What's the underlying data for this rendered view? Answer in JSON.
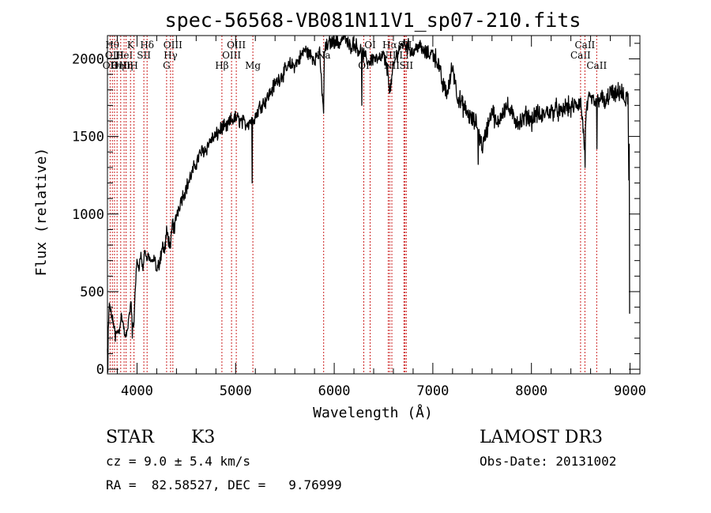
{
  "chart_data": {
    "type": "line",
    "title": "spec-56568-VB081N11V1_sp07-210.fits",
    "xlabel": "Wavelength (Å)",
    "ylabel": "Flux (relative)",
    "xlim": [
      3700,
      9100
    ],
    "ylim": [
      -30,
      2150
    ],
    "x_ticks": [
      4000,
      5000,
      6000,
      7000,
      8000,
      9000
    ],
    "y_ticks": [
      0,
      500,
      1000,
      1500,
      2000
    ],
    "grid": false,
    "series": [
      {
        "color": "#000000",
        "x": [
          3700,
          3720,
          3740,
          3760,
          3780,
          3800,
          3820,
          3840,
          3860,
          3880,
          3900,
          3920,
          3940,
          3960,
          3970,
          3980,
          4000,
          4020,
          4040,
          4060,
          4080,
          4100,
          4120,
          4150,
          4180,
          4200,
          4230,
          4260,
          4280,
          4300,
          4320,
          4340,
          4360,
          4380,
          4400,
          4450,
          4500,
          4550,
          4600,
          4650,
          4700,
          4750,
          4800,
          4860,
          4900,
          4950,
          5000,
          5050,
          5100,
          5150,
          5180,
          5200,
          5250,
          5300,
          5350,
          5400,
          5450,
          5500,
          5550,
          5600,
          5650,
          5700,
          5750,
          5800,
          5850,
          5893,
          5900,
          5950,
          6000,
          6050,
          6100,
          6150,
          6200,
          6250,
          6300,
          6350,
          6400,
          6450,
          6500,
          6550,
          6563,
          6600,
          6650,
          6700,
          6750,
          6800,
          6850,
          6900,
          6950,
          7000,
          7050,
          7100,
          7150,
          7200,
          7250,
          7300,
          7350,
          7400,
          7450,
          7500,
          7550,
          7600,
          7650,
          7700,
          7750,
          7800,
          7850,
          7900,
          7950,
          8000,
          8050,
          8100,
          8150,
          8200,
          8250,
          8300,
          8350,
          8400,
          8450,
          8500,
          8542,
          8560,
          8600,
          8650,
          8700,
          8750,
          8800,
          8850,
          8900,
          8950,
          8980,
          9000
        ],
        "values": [
          130,
          420,
          350,
          300,
          230,
          240,
          250,
          350,
          290,
          200,
          240,
          360,
          420,
          260,
          300,
          500,
          700,
          660,
          740,
          640,
          780,
          700,
          730,
          680,
          720,
          620,
          700,
          800,
          760,
          880,
          840,
          780,
          950,
          900,
          1000,
          1100,
          1170,
          1250,
          1330,
          1400,
          1420,
          1480,
          1500,
          1560,
          1550,
          1600,
          1620,
          1600,
          1580,
          1600,
          1620,
          1630,
          1700,
          1730,
          1780,
          1840,
          1880,
          1920,
          1960,
          1960,
          2000,
          2060,
          2030,
          2000,
          2040,
          1650,
          2060,
          2100,
          2120,
          2100,
          2150,
          2080,
          2100,
          2060,
          2020,
          1980,
          2010,
          1990,
          2020,
          1900,
          1780,
          1950,
          2060,
          2100,
          2080,
          2040,
          2090,
          2050,
          2030,
          2040,
          1980,
          1830,
          1780,
          1960,
          1760,
          1700,
          1650,
          1600,
          1580,
          1430,
          1550,
          1680,
          1560,
          1660,
          1700,
          1640,
          1600,
          1590,
          1640,
          1600,
          1650,
          1620,
          1660,
          1660,
          1680,
          1640,
          1700,
          1680,
          1700,
          1720,
          1420,
          1700,
          1740,
          1720,
          1760,
          1700,
          1790,
          1750,
          1800,
          1720,
          1760,
          360
        ],
        "spikes": [
          [
            3705,
            -20
          ],
          [
            3780,
            180
          ],
          [
            3835,
            320
          ],
          [
            3950,
            200
          ],
          [
            4230,
            720
          ],
          [
            4340,
            780
          ],
          [
            5168,
            1200
          ],
          [
            5893,
            1650
          ],
          [
            6280,
            1700
          ],
          [
            6563,
            1780
          ],
          [
            7460,
            1320
          ],
          [
            8542,
            1300
          ],
          [
            8662,
            1420
          ],
          [
            8992,
            1450
          ]
        ]
      }
    ],
    "lines": [
      {
        "x": 3727,
        "label": "OII",
        "row": 2
      },
      {
        "x": 3750,
        "label": "Hθ",
        "row": 0
      },
      {
        "x": 3771,
        "label": "OIII",
        "row": 1
      },
      {
        "x": 3798,
        "label": "Hη",
        "row": 2
      },
      {
        "x": 3835,
        "label": "OIII",
        "row": 2
      },
      {
        "x": 3869,
        "label": "HeI",
        "row": 1
      },
      {
        "x": 3889,
        "label": "Hη",
        "row": 2
      },
      {
        "x": 3934,
        "label": "K",
        "row": 0
      },
      {
        "x": 3969,
        "label": "H",
        "row": 2
      },
      {
        "x": 4069,
        "label": "SII",
        "row": 1
      },
      {
        "x": 4102,
        "label": "Hδ",
        "row": 0
      },
      {
        "x": 4300,
        "label": "G",
        "row": 2
      },
      {
        "x": 4340,
        "label": "Hγ",
        "row": 1
      },
      {
        "x": 4363,
        "label": "OIII",
        "row": 0
      },
      {
        "x": 4861,
        "label": "Hβ",
        "row": 2
      },
      {
        "x": 4959,
        "label": "OIII",
        "row": 1
      },
      {
        "x": 5007,
        "label": "OIII",
        "row": 0
      },
      {
        "x": 5175,
        "label": "Mg",
        "row": 2
      },
      {
        "x": 5893,
        "label": "Na",
        "row": 1
      },
      {
        "x": 6300,
        "label": "OI",
        "row": 2
      },
      {
        "x": 6364,
        "label": "OI",
        "row": 0
      },
      {
        "x": 6548,
        "label": "NII",
        "row": 1
      },
      {
        "x": 6563,
        "label": "Hα",
        "row": 0
      },
      {
        "x": 6584,
        "label": "NII",
        "row": 2
      },
      {
        "x": 6707,
        "label": "Li",
        "row": 1
      },
      {
        "x": 6717,
        "label": "SII",
        "row": 0
      },
      {
        "x": 6731,
        "label": "SII",
        "row": 2
      },
      {
        "x": 8498,
        "label": "CaII",
        "row": 1
      },
      {
        "x": 8542,
        "label": "CaII",
        "row": 0
      },
      {
        "x": 8662,
        "label": "CaII",
        "row": 2
      }
    ]
  },
  "info": {
    "class": "STAR",
    "subclass": "K3",
    "survey": "LAMOST DR3",
    "cz": "cz = 9.0 ± 5.4 km/s",
    "obs_date": "Obs-Date: 20131002",
    "coords": "RA =  82.58527, DEC =   9.76999"
  }
}
